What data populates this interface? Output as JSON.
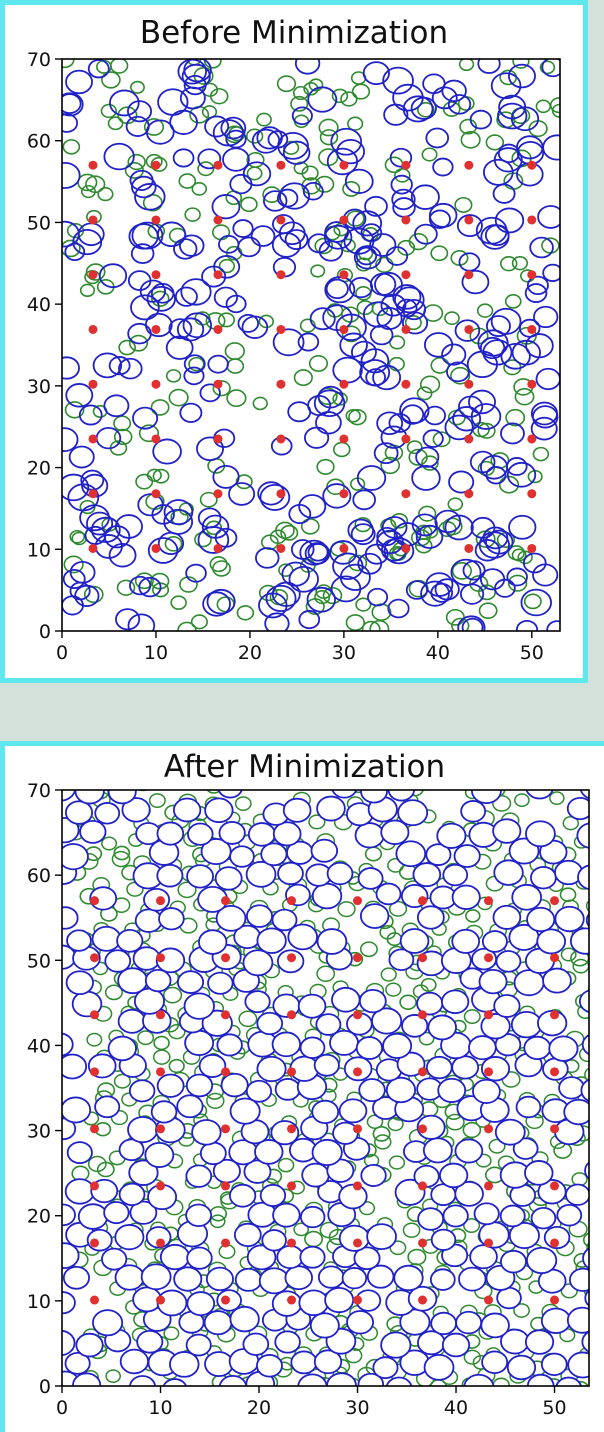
{
  "chart_data": [
    {
      "type": "scatter",
      "title": "Before Minimization",
      "xlim": [
        0,
        53
      ],
      "ylim": [
        0,
        70
      ],
      "xticks": [
        0,
        10,
        20,
        30,
        40,
        50
      ],
      "yticks": [
        0,
        10,
        20,
        30,
        40,
        50,
        60,
        70
      ],
      "grid": false,
      "series": [
        {
          "marker": "filled-circle",
          "color": "#e03030",
          "size": 0.4,
          "x": [
            3.3,
            10,
            16.6,
            23.3,
            30,
            36.6,
            43.3,
            50
          ],
          "y": [
            10.1,
            16.8,
            23.5,
            30.2,
            36.9,
            43.6,
            50.3,
            57
          ]
        },
        {
          "marker": "open-circle",
          "color": "#2121c8",
          "size_range": [
            1.0,
            1.6
          ],
          "arrangement": "random, overlapping",
          "count": 340
        },
        {
          "marker": "open-circle",
          "color": "#2f8a2f",
          "size_range": [
            0.7,
            1.0
          ],
          "arrangement": "random, overlapping",
          "count": 260
        }
      ]
    },
    {
      "type": "scatter",
      "title": "After Minimization",
      "xlim": [
        0,
        53.5
      ],
      "ylim": [
        0,
        70
      ],
      "xticks": [
        0,
        10,
        20,
        30,
        40,
        50
      ],
      "yticks": [
        0,
        10,
        20,
        30,
        40,
        50,
        60,
        70
      ],
      "grid": false,
      "series": [
        {
          "marker": "filled-circle",
          "color": "#e03030",
          "size": 0.4,
          "x": [
            3.3,
            10,
            16.6,
            23.3,
            30,
            36.6,
            43.3,
            50
          ],
          "y": [
            10.1,
            16.8,
            23.5,
            30.2,
            36.9,
            43.6,
            50.3,
            57
          ]
        },
        {
          "marker": "open-circle",
          "color": "#2121c8",
          "size_range": [
            1.2,
            1.5
          ],
          "arrangement": "dense packing, no overlap",
          "count": 400
        },
        {
          "marker": "open-circle",
          "color": "#2f8a2f",
          "size_range": [
            0.7,
            0.9
          ],
          "arrangement": "fills gaps between blue circles",
          "count": 450
        }
      ]
    }
  ]
}
